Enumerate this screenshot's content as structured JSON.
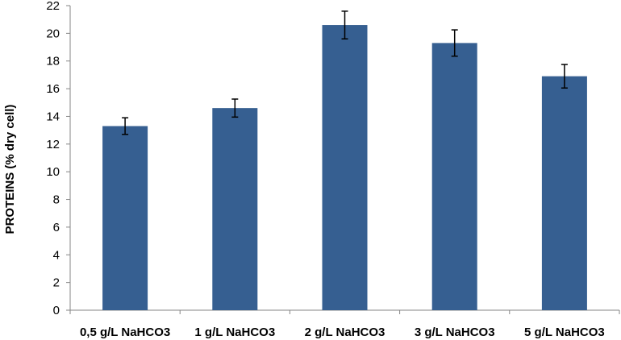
{
  "chart_data": {
    "type": "bar",
    "title": "",
    "xlabel": "",
    "ylabel": "PROTEINS (% dry cell)",
    "categories": [
      "0,5 g/L NaHCO3",
      "1 g/L NaHCO3",
      "2 g/L NaHCO3",
      "3 g/L NaHCO3",
      "5 g/L NaHCO3"
    ],
    "series": [
      {
        "values": [
          13.3,
          14.6,
          20.6,
          19.3,
          16.9
        ],
        "errors": [
          0.6,
          0.65,
          1.0,
          0.95,
          0.85
        ]
      }
    ],
    "ylim": [
      0,
      22
    ],
    "yticks": [
      0,
      2,
      4,
      6,
      8,
      10,
      12,
      14,
      16,
      18,
      20,
      22
    ],
    "grid": false,
    "legend": "none",
    "bar_color": "#365F91",
    "error_bar_color": "#000000"
  }
}
